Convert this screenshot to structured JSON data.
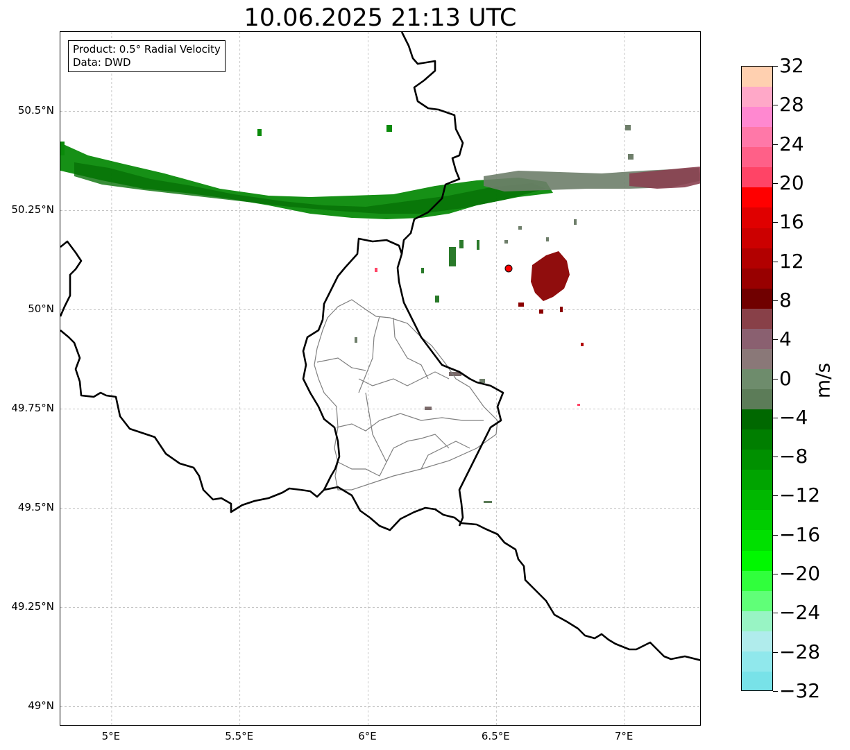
{
  "title": "10.06.2025 21:13 UTC",
  "info": {
    "product": "Product: 0.5° Radial Velocity",
    "source": "Data: DWD"
  },
  "map": {
    "lon_range": [
      4.8,
      7.3
    ],
    "lat_range": [
      48.95,
      50.7
    ],
    "lon_ticks": [
      {
        "value": 5.0,
        "label": "5°E"
      },
      {
        "value": 5.5,
        "label": "5.5°E"
      },
      {
        "value": 6.0,
        "label": "6°E"
      },
      {
        "value": 6.5,
        "label": "6.5°E"
      },
      {
        "value": 7.0,
        "label": "7°E"
      }
    ],
    "lat_ticks": [
      {
        "value": 50.5,
        "label": "50.5°N"
      },
      {
        "value": 50.25,
        "label": "50.25°N"
      },
      {
        "value": 50.0,
        "label": "50°N"
      },
      {
        "value": 49.75,
        "label": "49.75°N"
      },
      {
        "value": 49.5,
        "label": "49.5°N"
      },
      {
        "value": 49.25,
        "label": "49.25°N"
      },
      {
        "value": 49.0,
        "label": "49°N"
      }
    ],
    "grid": true,
    "radar_site": {
      "lon": 6.55,
      "lat": 50.11,
      "color": "#ff0000"
    },
    "border_color": "#000000",
    "admin_color": "#808080"
  },
  "colorbar": {
    "unit": "m/s",
    "min": -32,
    "max": 32,
    "ticks": [
      32,
      28,
      24,
      20,
      16,
      12,
      8,
      4,
      0,
      -4,
      -8,
      -12,
      -16,
      -20,
      -24,
      -28,
      -32
    ],
    "tick_labels": [
      "32",
      "28",
      "24",
      "20",
      "16",
      "12",
      "8",
      "4",
      "0",
      "−4",
      "−8",
      "−12",
      "−16",
      "−20",
      "−24",
      "−28",
      "−32"
    ],
    "colors": [
      "#ffd0b0",
      "#ffa8c8",
      "#ff88d0",
      "#ff78a8",
      "#ff6088",
      "#ff4466",
      "#ff0000",
      "#e00000",
      "#cc0000",
      "#b20000",
      "#980000",
      "#700000",
      "#884048",
      "#8a6070",
      "#8a7878",
      "#6e8c6c",
      "#5c7c58",
      "#006800",
      "#007e00",
      "#009000",
      "#00a400",
      "#00b800",
      "#00cc00",
      "#00e000",
      "#00f800",
      "#30ff3c",
      "#60ff78",
      "#98f4c4",
      "#b0ecec",
      "#90e8ec",
      "#78e2e8"
    ]
  }
}
